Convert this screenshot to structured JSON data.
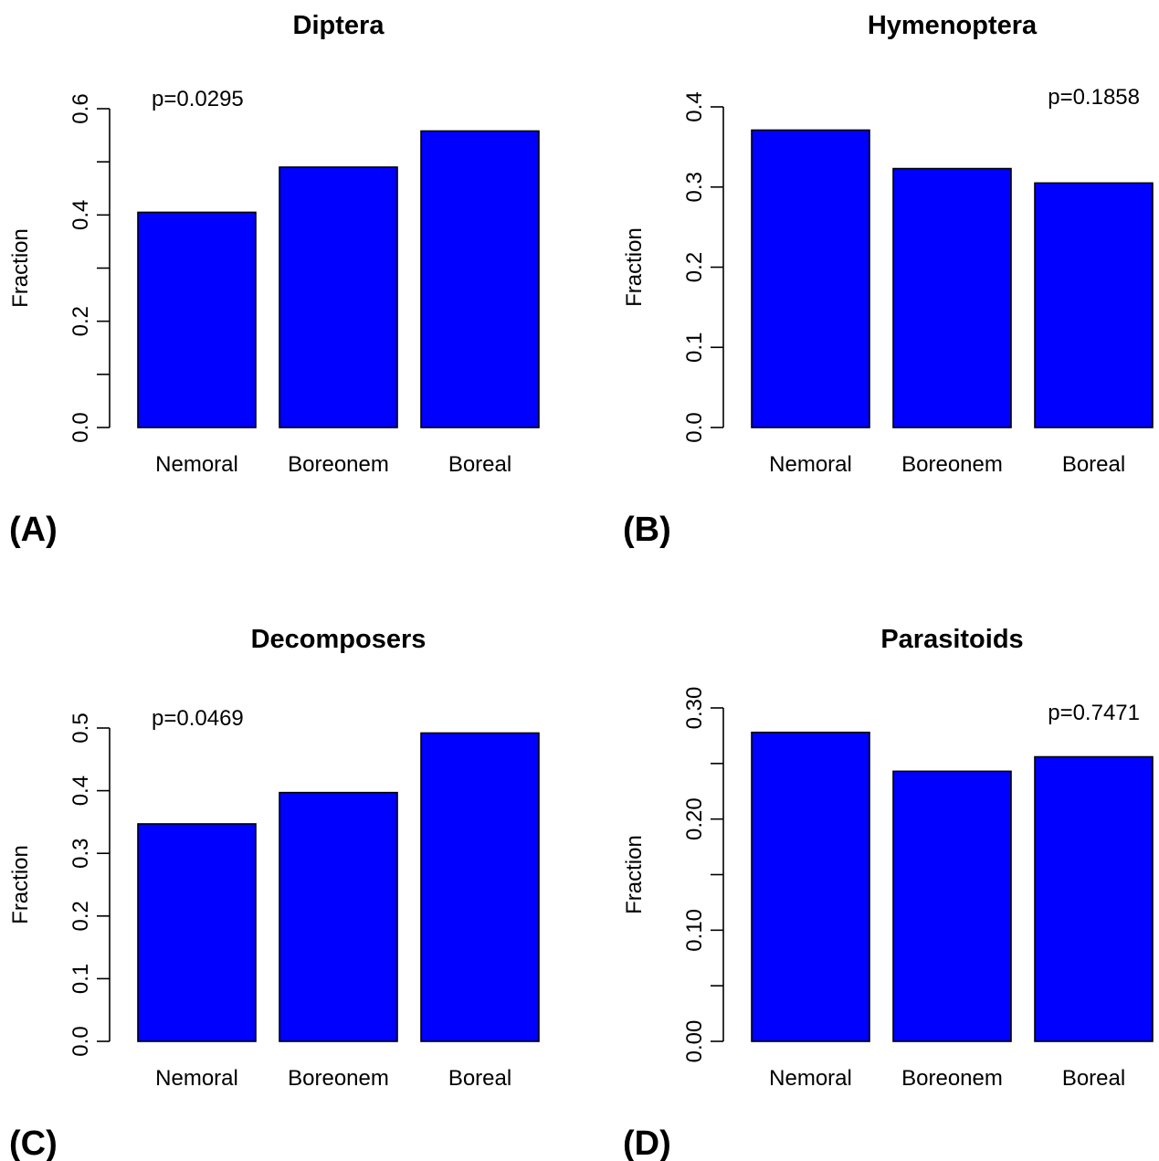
{
  "colors": {
    "bar_fill": "#0000ff",
    "bar_stroke": "#000000",
    "axis": "#000000",
    "background": "#ffffff"
  },
  "chart_data": [
    {
      "type": "bar",
      "tag": "(A)",
      "title": "Diptera",
      "ylabel": "Fraction",
      "xlabel": "",
      "categories": [
        "Nemoral",
        "Boreonem",
        "Boreal"
      ],
      "values": [
        0.405,
        0.49,
        0.558
      ],
      "ylim": [
        0,
        0.6
      ],
      "yticks": [
        0,
        0.1,
        0.2,
        0.3,
        0.4,
        0.5,
        0.6
      ],
      "ytick_labels": [
        "0.0",
        "",
        "0.2",
        "",
        "0.4",
        "",
        "0.6"
      ],
      "annotation": "p=0.0295",
      "annotation_position": "top-left",
      "grid": false
    },
    {
      "type": "bar",
      "tag": "(B)",
      "title": "Hymenoptera",
      "ylabel": "Fraction",
      "xlabel": "",
      "categories": [
        "Nemoral",
        "Boreonem",
        "Boreal"
      ],
      "values": [
        0.371,
        0.323,
        0.305
      ],
      "ylim": [
        0,
        0.4
      ],
      "yticks": [
        0,
        0.1,
        0.2,
        0.3,
        0.4
      ],
      "ytick_labels": [
        "0.0",
        "0.1",
        "0.2",
        "0.3",
        "0.4"
      ],
      "annotation": "p=0.1858",
      "annotation_position": "top-right",
      "grid": false
    },
    {
      "type": "bar",
      "tag": "(C)",
      "title": "Decomposers",
      "ylabel": "Fraction",
      "xlabel": "",
      "categories": [
        "Nemoral",
        "Boreonem",
        "Boreal"
      ],
      "values": [
        0.347,
        0.397,
        0.492
      ],
      "ylim": [
        0,
        0.5
      ],
      "yticks": [
        0,
        0.1,
        0.2,
        0.3,
        0.4,
        0.5
      ],
      "ytick_labels": [
        "0.0",
        "0.1",
        "0.2",
        "0.3",
        "0.4",
        "0.5"
      ],
      "annotation": "p=0.0469",
      "annotation_position": "top-left",
      "grid": false
    },
    {
      "type": "bar",
      "tag": "(D)",
      "title": "Parasitoids",
      "ylabel": "Fraction",
      "xlabel": "",
      "categories": [
        "Nemoral",
        "Boreonem",
        "Boreal"
      ],
      "values": [
        0.278,
        0.243,
        0.256
      ],
      "ylim": [
        0,
        0.3
      ],
      "yticks": [
        0,
        0.05,
        0.1,
        0.15,
        0.2,
        0.25,
        0.3
      ],
      "ytick_labels": [
        "0.00",
        "",
        "0.10",
        "",
        "0.20",
        "",
        "0.30"
      ],
      "annotation": "p=0.7471",
      "annotation_position": "top-right",
      "grid": false
    }
  ]
}
